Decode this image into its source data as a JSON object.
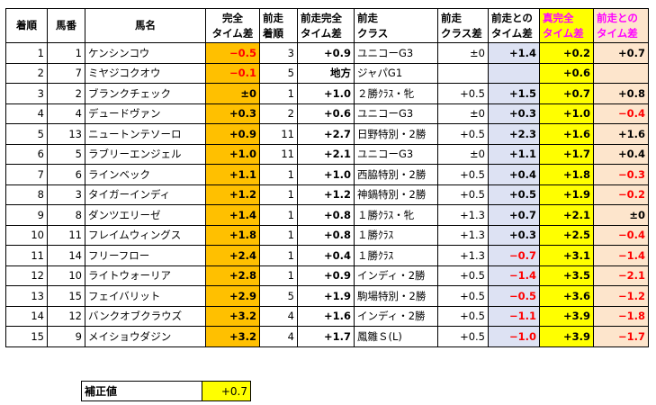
{
  "headers": {
    "finish": "着順",
    "num": "馬番",
    "name": "馬名",
    "diff": [
      "完全",
      "タイム差"
    ],
    "prev_pos": [
      "前走",
      "着順"
    ],
    "prev_diff": [
      "前走完全",
      "タイム差"
    ],
    "prev_class": [
      "前走",
      "クラス"
    ],
    "class_diff": [
      "前走",
      "クラス差"
    ],
    "prev_time_diff": [
      "前走との",
      "タイム差"
    ],
    "true_diff": [
      "真完全",
      "タイム差"
    ],
    "true_prev": [
      "前走との",
      "タイム差"
    ]
  },
  "rows": [
    {
      "finish": "1",
      "num": "1",
      "name": "ケンシンコウ",
      "diff": "−0.5",
      "prev_pos": "3",
      "prev_diff": "+0.9",
      "prev_class": "ユニコーG3",
      "class_diff": "±0",
      "prev_time_diff": "+1.4",
      "true_diff": "+0.2",
      "true_prev": "+0.7"
    },
    {
      "finish": "2",
      "num": "7",
      "name": "ミヤジコクオウ",
      "diff": "−0.1",
      "prev_pos": "5",
      "prev_diff": "地方",
      "prev_class": "ジャパG1",
      "class_diff": "",
      "prev_time_diff": "",
      "true_diff": "+0.6",
      "true_prev": ""
    },
    {
      "finish": "3",
      "num": "2",
      "name": "ブランクチェック",
      "diff": "±0",
      "prev_pos": "1",
      "prev_diff": "+1.0",
      "prev_class": "２勝ｸﾗｽ・牝",
      "class_diff": "+0.5",
      "prev_time_diff": "+1.5",
      "true_diff": "+0.7",
      "true_prev": "+0.8"
    },
    {
      "finish": "4",
      "num": "4",
      "name": "デュードヴァン",
      "diff": "+0.3",
      "prev_pos": "2",
      "prev_diff": "+0.6",
      "prev_class": "ユニコーG3",
      "class_diff": "±0",
      "prev_time_diff": "+0.3",
      "true_diff": "+1.0",
      "true_prev": "−0.4"
    },
    {
      "finish": "5",
      "num": "13",
      "name": "ニュートンテソーロ",
      "diff": "+0.9",
      "prev_pos": "11",
      "prev_diff": "+2.7",
      "prev_class": "日野特別・2勝",
      "class_diff": "+0.5",
      "prev_time_diff": "+2.3",
      "true_diff": "+1.6",
      "true_prev": "+1.6"
    },
    {
      "finish": "6",
      "num": "5",
      "name": "ラブリーエンジェル",
      "diff": "+1.0",
      "prev_pos": "11",
      "prev_diff": "+2.1",
      "prev_class": "ユニコーG3",
      "class_diff": "±0",
      "prev_time_diff": "+1.1",
      "true_diff": "+1.7",
      "true_prev": "+0.4"
    },
    {
      "finish": "7",
      "num": "6",
      "name": "ラインベック",
      "diff": "+1.1",
      "prev_pos": "1",
      "prev_diff": "+1.0",
      "prev_class": "西脇特別・2勝",
      "class_diff": "+0.5",
      "prev_time_diff": "+0.4",
      "true_diff": "+1.8",
      "true_prev": "−0.3"
    },
    {
      "finish": "8",
      "num": "3",
      "name": "タイガーインディ",
      "diff": "+1.2",
      "prev_pos": "1",
      "prev_diff": "+1.2",
      "prev_class": "神鍋特別・2勝",
      "class_diff": "+0.5",
      "prev_time_diff": "+0.5",
      "true_diff": "+1.9",
      "true_prev": "−0.2"
    },
    {
      "finish": "9",
      "num": "8",
      "name": "ダンツエリーゼ",
      "diff": "+1.4",
      "prev_pos": "1",
      "prev_diff": "+0.8",
      "prev_class": "１勝ｸﾗｽ・牝",
      "class_diff": "+1.3",
      "prev_time_diff": "+0.7",
      "true_diff": "+2.1",
      "true_prev": "±0"
    },
    {
      "finish": "10",
      "num": "11",
      "name": "フレイムウィングス",
      "diff": "+1.8",
      "prev_pos": "1",
      "prev_diff": "+0.8",
      "prev_class": "１勝ｸﾗｽ",
      "class_diff": "+1.3",
      "prev_time_diff": "+0.3",
      "true_diff": "+2.5",
      "true_prev": "−0.4"
    },
    {
      "finish": "11",
      "num": "14",
      "name": "フリーフロー",
      "diff": "+2.4",
      "prev_pos": "1",
      "prev_diff": "+0.4",
      "prev_class": "１勝ｸﾗｽ",
      "class_diff": "+1.3",
      "prev_time_diff": "−0.7",
      "true_diff": "+3.1",
      "true_prev": "−1.4"
    },
    {
      "finish": "12",
      "num": "10",
      "name": "ライトウォーリア",
      "diff": "+2.8",
      "prev_pos": "1",
      "prev_diff": "+0.9",
      "prev_class": "インディ・2勝",
      "class_diff": "+0.5",
      "prev_time_diff": "−1.4",
      "true_diff": "+3.5",
      "true_prev": "−2.1"
    },
    {
      "finish": "13",
      "num": "15",
      "name": "フェイバリット",
      "diff": "+2.9",
      "prev_pos": "5",
      "prev_diff": "+1.9",
      "prev_class": "駒場特別・2勝",
      "class_diff": "+0.5",
      "prev_time_diff": "−0.5",
      "true_diff": "+3.6",
      "true_prev": "−1.2"
    },
    {
      "finish": "14",
      "num": "12",
      "name": "バンクオブクラウズ",
      "diff": "+3.2",
      "prev_pos": "4",
      "prev_diff": "+1.6",
      "prev_class": "インディ・2勝",
      "class_diff": "+0.5",
      "prev_time_diff": "−1.1",
      "true_diff": "+3.9",
      "true_prev": "−1.8"
    },
    {
      "finish": "15",
      "num": "9",
      "name": "メイショウダジン",
      "diff": "+3.2",
      "prev_pos": "4",
      "prev_diff": "+1.7",
      "prev_class": "鳳雛Ｓ(L)",
      "class_diff": "+0.5",
      "prev_time_diff": "−1.0",
      "true_diff": "+3.9",
      "true_prev": "−1.7"
    }
  ],
  "correction": {
    "label": "補正値",
    "value": "+0.7"
  },
  "colors": {
    "orange": "#ffc000",
    "blue": "#dde2f3",
    "yellow": "#ffff00",
    "peach": "#fde5cc",
    "negative": "#ff0000",
    "magenta_header": "#ff00ff"
  }
}
